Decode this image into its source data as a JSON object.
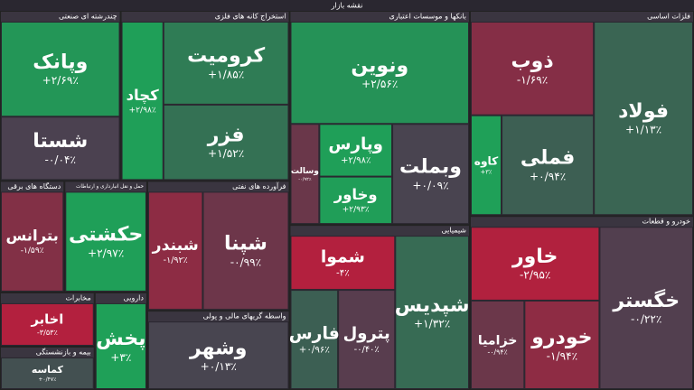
{
  "chart_data": {
    "type": "treemap",
    "title": "نقشه بازار",
    "sectors": [
      {
        "name": "فلزات اساسی",
        "tiles": [
          {
            "name": "فولاد",
            "size": 10000,
            "value": 1.13,
            "value_label": "+۱/۱۳٪"
          },
          {
            "name": "ذوب",
            "size": 6000,
            "value": -1.69,
            "value_label": "-۱/۶۹٪"
          },
          {
            "name": "فملی",
            "size": 4800,
            "value": 0.94,
            "value_label": "+۰/۹۴٪"
          },
          {
            "name": "کاوه",
            "size": 1600,
            "value": 3,
            "value_label": "+۳٪"
          }
        ]
      },
      {
        "name": "خودرو و قطعات",
        "tiles": [
          {
            "name": "خگستر",
            "size": 8000,
            "value": -0.22,
            "value_label": "-۰/۲۲٪"
          },
          {
            "name": "خاور",
            "size": 5000,
            "value": -2.95,
            "value_label": "-۲/۹۵٪"
          },
          {
            "name": "خودرو",
            "size": 3500,
            "value": -1.94,
            "value_label": "-۱/۹۴٪"
          },
          {
            "name": "خزامیا",
            "size": 2500,
            "value": -0.94,
            "value_label": "-۰/۹۴٪"
          }
        ]
      },
      {
        "name": "بانکها و موسسات اعتباری",
        "tiles": [
          {
            "name": "ونوین",
            "size": 9500,
            "value": 2.56,
            "value_label": "+۲/۵۶٪"
          },
          {
            "name": "وبملت",
            "size": 4000,
            "value": 0.09,
            "value_label": "+۰/۰۹٪"
          },
          {
            "name": "وپارس",
            "size": 2000,
            "value": 2.98,
            "value_label": "+۲/۹۸٪"
          },
          {
            "name": "وخاور",
            "size": 1800,
            "value": 2.93,
            "value_label": "+۲/۹۳٪"
          },
          {
            "name": "وسالت",
            "size": 1500,
            "value": -0.92,
            "value_label": "-۰/۹۲٪"
          }
        ]
      },
      {
        "name": "شیمیایی",
        "tiles": [
          {
            "name": "شپدیس",
            "size": 6000,
            "value": 1.32,
            "value_label": "+۱/۳۲٪"
          },
          {
            "name": "شموا",
            "size": 3000,
            "value": -4,
            "value_label": "-۴٪"
          },
          {
            "name": "پترول",
            "size": 3000,
            "value": -0.4,
            "value_label": "-۰/۴۰٪"
          },
          {
            "name": "فارس",
            "size": 2500,
            "value": 0.96,
            "value_label": "+۰/۹۶٪"
          }
        ]
      },
      {
        "name": "استخراج کانه های فلزی",
        "tiles": [
          {
            "name": "کرومیت",
            "size": 5500,
            "value": 1.85,
            "value_label": "+۱/۸۵٪"
          },
          {
            "name": "فزر",
            "size": 5000,
            "value": 1.52,
            "value_label": "+۱/۵۲٪"
          },
          {
            "name": "کچاد",
            "size": 3500,
            "value": 2.98,
            "value_label": "+۲/۹۸٪"
          }
        ]
      },
      {
        "name": "چندرشته ای صنعتی",
        "tiles": [
          {
            "name": "وپانک",
            "size": 6000,
            "value": 2.69,
            "value_label": "+۲/۶۹٪"
          },
          {
            "name": "شستا",
            "size": 4000,
            "value": -0.04,
            "value_label": "-۰/۰۴٪"
          }
        ]
      },
      {
        "name": "فرآورده های نفتی",
        "tiles": [
          {
            "name": "شپنا",
            "size": 5500,
            "value": -0.99,
            "value_label": "-۰/۹۹٪"
          },
          {
            "name": "شبندر",
            "size": 3500,
            "value": -1.92,
            "value_label": "-۱/۹۲٪"
          }
        ]
      },
      {
        "name": "واسطه گریهای مالی و پولی",
        "tiles": [
          {
            "name": "وشهر",
            "size": 5500,
            "value": 0.13,
            "value_label": "+۰/۱۳٪"
          }
        ]
      },
      {
        "name": "حمل و نقل انبارداری و ارتباطات",
        "tiles": [
          {
            "name": "حکشتی",
            "size": 4500,
            "value": 2.97,
            "value_label": "+۲/۹۷٪"
          }
        ]
      },
      {
        "name": "دستگاه های برقی",
        "tiles": [
          {
            "name": "بترانس",
            "size": 3500,
            "value": -1.59,
            "value_label": "-۱/۵۹٪"
          }
        ]
      },
      {
        "name": "دارویی",
        "tiles": [
          {
            "name": "پخش",
            "size": 2500,
            "value": 3,
            "value_label": "+۳٪"
          }
        ]
      },
      {
        "name": "مخابرات",
        "tiles": [
          {
            "name": "اخابر",
            "size": 2500,
            "value": -3.53,
            "value_label": "-۳/۵۳٪"
          }
        ]
      },
      {
        "name": "بیمه و بازنشستگی",
        "tiles": [
          {
            "name": "کماسه",
            "size": 2000,
            "value": 0.47,
            "value_label": "+۰/۴۷٪"
          }
        ]
      }
    ]
  }
}
